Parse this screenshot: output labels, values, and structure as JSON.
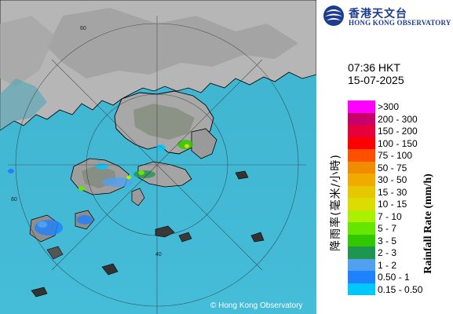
{
  "brand": {
    "name_zh": "香港天文台",
    "name_en": "HONG KONG OBSERVATORY",
    "primary_color": "#1c3d8f"
  },
  "timestamp": {
    "time": "07:36 HKT",
    "date": "15-07-2025"
  },
  "legend": {
    "title_en": "Rainfall Rate (mm/h)",
    "title_zh": "降雨率(毫米/小時)",
    "items": [
      {
        "label": ">300",
        "color": "#ff00ff"
      },
      {
        "label": "200 - 300",
        "color": "#c8006e"
      },
      {
        "label": "150 - 200",
        "color": "#e6003c"
      },
      {
        "label": "100 - 150",
        "color": "#ff0000"
      },
      {
        "label": "75 - 100",
        "color": "#ff5000"
      },
      {
        "label": "50 - 75",
        "color": "#f08c00"
      },
      {
        "label": "30 - 50",
        "color": "#f0aa00"
      },
      {
        "label": "15 - 30",
        "color": "#e6c800"
      },
      {
        "label": "10 - 15",
        "color": "#dcdc00"
      },
      {
        "label": "7 - 10",
        "color": "#aaf000"
      },
      {
        "label": "5 - 7",
        "color": "#64e600"
      },
      {
        "label": "3 - 5",
        "color": "#32c800"
      },
      {
        "label": "2 - 3",
        "color": "#1e9650"
      },
      {
        "label": "1 - 2",
        "color": "#50a0f0"
      },
      {
        "label": "0.50 - 1",
        "color": "#1e82ff"
      },
      {
        "label": "0.15 - 0.50",
        "color": "#00c8ff"
      }
    ]
  },
  "map": {
    "copyright": "© Hong Kong Observatory",
    "range_ring_labels": [
      "60",
      "60",
      "40"
    ],
    "sea_color": "#52c4d8",
    "land_color": "#bcbcbc"
  }
}
